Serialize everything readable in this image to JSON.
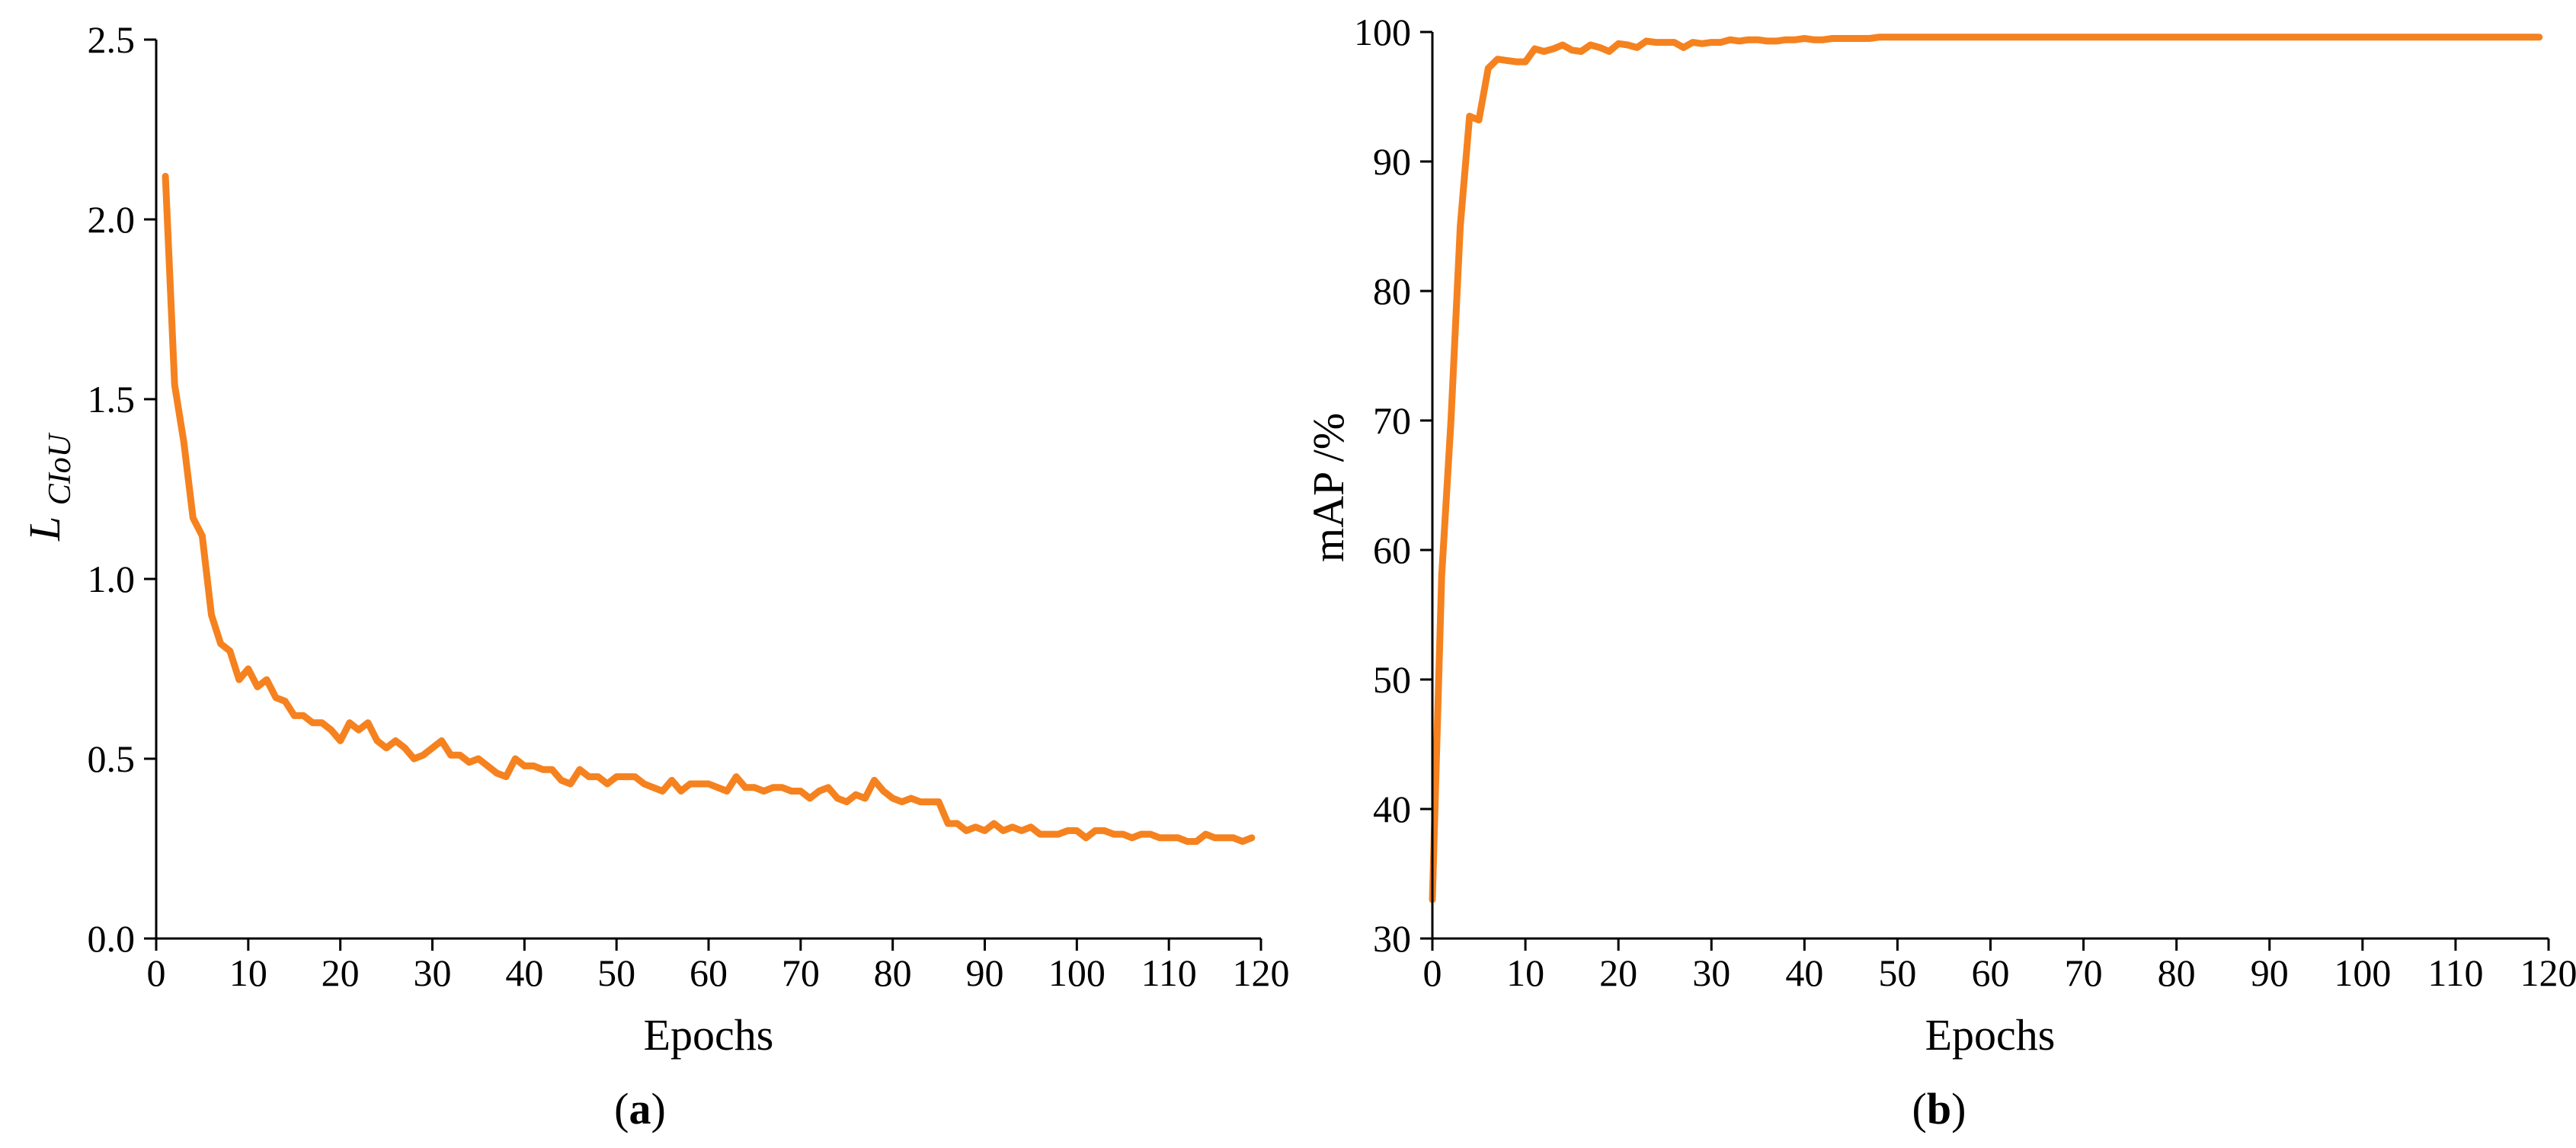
{
  "chart_data": [
    {
      "type": "line",
      "panel_label": "a",
      "xlabel": "Epochs",
      "ylabel": {
        "main": "L",
        "subscript": "CIoU"
      },
      "xlim": [
        0,
        120
      ],
      "ylim": [
        0.0,
        2.5
      ],
      "x_ticks": [
        0,
        10,
        20,
        30,
        40,
        50,
        60,
        70,
        80,
        90,
        100,
        110,
        120
      ],
      "y_ticks": [
        "0.0",
        "0.5",
        "1.0",
        "1.5",
        "2.0",
        "2.5"
      ],
      "grid": false,
      "line_color": "#f5821f",
      "series": [
        {
          "x": [
            1,
            2,
            3,
            4,
            5,
            6,
            7,
            8,
            9,
            10,
            11,
            12,
            13,
            14,
            15,
            16,
            17,
            18,
            19,
            20,
            21,
            22,
            23,
            24,
            25,
            26,
            27,
            28,
            29,
            30,
            31,
            32,
            33,
            34,
            35,
            36,
            37,
            38,
            39,
            40,
            41,
            42,
            43,
            44,
            45,
            46,
            47,
            48,
            49,
            50,
            51,
            52,
            53,
            54,
            55,
            56,
            57,
            58,
            59,
            60,
            61,
            62,
            63,
            64,
            65,
            66,
            67,
            68,
            69,
            70,
            71,
            72,
            73,
            74,
            75,
            76,
            77,
            78,
            79,
            80,
            81,
            82,
            83,
            84,
            85,
            86,
            87,
            88,
            89,
            90,
            91,
            92,
            93,
            94,
            95,
            96,
            97,
            98,
            99,
            100,
            101,
            102,
            103,
            104,
            105,
            106,
            107,
            108,
            109,
            110,
            111,
            112,
            113,
            114,
            115,
            116,
            117,
            118,
            119
          ],
          "y": [
            2.12,
            1.54,
            1.38,
            1.17,
            1.12,
            0.9,
            0.82,
            0.8,
            0.72,
            0.75,
            0.7,
            0.72,
            0.67,
            0.66,
            0.62,
            0.62,
            0.6,
            0.6,
            0.58,
            0.55,
            0.6,
            0.58,
            0.6,
            0.55,
            0.53,
            0.55,
            0.53,
            0.5,
            0.51,
            0.53,
            0.55,
            0.51,
            0.51,
            0.49,
            0.5,
            0.48,
            0.46,
            0.45,
            0.5,
            0.48,
            0.48,
            0.47,
            0.47,
            0.44,
            0.43,
            0.47,
            0.45,
            0.45,
            0.43,
            0.45,
            0.45,
            0.45,
            0.43,
            0.42,
            0.41,
            0.44,
            0.41,
            0.43,
            0.43,
            0.43,
            0.42,
            0.41,
            0.45,
            0.42,
            0.42,
            0.41,
            0.42,
            0.42,
            0.41,
            0.41,
            0.39,
            0.41,
            0.42,
            0.39,
            0.38,
            0.4,
            0.39,
            0.44,
            0.41,
            0.39,
            0.38,
            0.39,
            0.38,
            0.38,
            0.38,
            0.32,
            0.32,
            0.3,
            0.31,
            0.3,
            0.32,
            0.3,
            0.31,
            0.3,
            0.31,
            0.29,
            0.29,
            0.29,
            0.3,
            0.3,
            0.28,
            0.3,
            0.3,
            0.29,
            0.29,
            0.28,
            0.29,
            0.29,
            0.28,
            0.28,
            0.28,
            0.27,
            0.27,
            0.29,
            0.28,
            0.28,
            0.28,
            0.27,
            0.28
          ]
        }
      ]
    },
    {
      "type": "line",
      "panel_label": "b",
      "xlabel": "Epochs",
      "ylabel": "mAP /%",
      "xlim": [
        0,
        120
      ],
      "ylim": [
        30,
        100
      ],
      "x_ticks": [
        0,
        10,
        20,
        30,
        40,
        50,
        60,
        70,
        80,
        90,
        100,
        110,
        120
      ],
      "y_ticks": [
        "30",
        "40",
        "50",
        "60",
        "70",
        "80",
        "90",
        "100"
      ],
      "grid": false,
      "line_color": "#f5821f",
      "series": [
        {
          "x": [
            0,
            1,
            2,
            3,
            4,
            5,
            6,
            7,
            8,
            9,
            10,
            11,
            12,
            13,
            14,
            15,
            16,
            17,
            18,
            19,
            20,
            21,
            22,
            23,
            24,
            25,
            26,
            27,
            28,
            29,
            30,
            31,
            32,
            33,
            34,
            35,
            36,
            37,
            38,
            39,
            40,
            41,
            42,
            43,
            44,
            45,
            46,
            47,
            48,
            60,
            80,
            100,
            119
          ],
          "y": [
            33.0,
            58.0,
            70.0,
            85.0,
            93.5,
            93.2,
            97.2,
            97.9,
            97.8,
            97.7,
            97.7,
            98.7,
            98.5,
            98.7,
            99.0,
            98.6,
            98.5,
            99.0,
            98.8,
            98.5,
            99.1,
            99.0,
            98.8,
            99.3,
            99.2,
            99.2,
            99.2,
            98.8,
            99.2,
            99.1,
            99.2,
            99.2,
            99.4,
            99.3,
            99.4,
            99.4,
            99.3,
            99.3,
            99.4,
            99.4,
            99.5,
            99.4,
            99.4,
            99.5,
            99.5,
            99.5,
            99.5,
            99.5,
            99.6,
            99.6,
            99.6,
            99.6,
            99.6
          ]
        }
      ]
    }
  ]
}
